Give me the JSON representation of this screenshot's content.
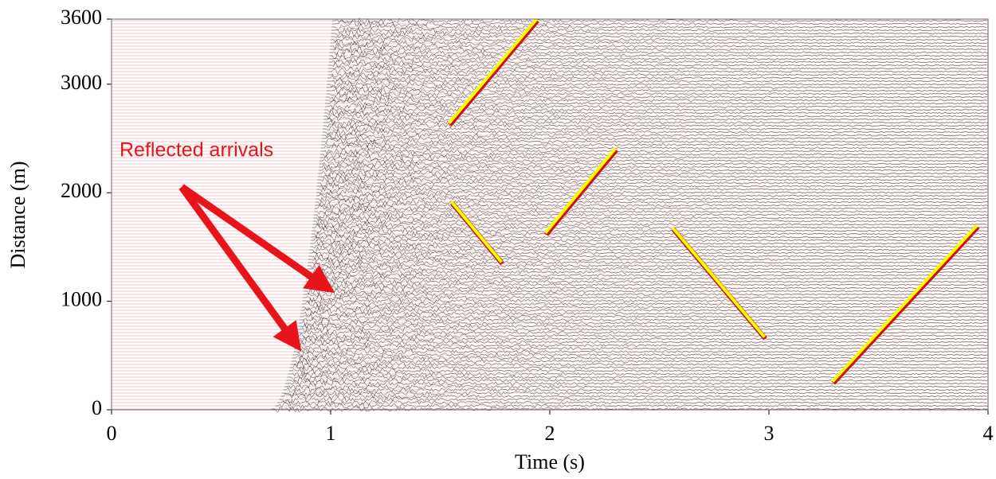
{
  "chart_data": {
    "type": "line",
    "x_label": "Time (s)",
    "y_label": "Distance (m)",
    "annotation": "Reflected arrivals",
    "xlim": [
      0,
      4
    ],
    "ylim": [
      0,
      3600
    ],
    "xticks": [
      0,
      1,
      2,
      3,
      4
    ],
    "yticks": [
      0,
      1000,
      2000,
      3000,
      3600
    ],
    "series": [
      {
        "color": "#ffff00",
        "x": [
          1.54,
          1.94
        ],
        "values": [
          2640,
          3600
        ]
      },
      {
        "color": "#ffff00",
        "x": [
          1.55,
          1.78
        ],
        "values": [
          1920,
          1360
        ]
      },
      {
        "color": "#ffff00",
        "x": [
          1.98,
          2.3
        ],
        "values": [
          1630,
          2410
        ]
      },
      {
        "color": "#ffff00",
        "x": [
          2.56,
          2.98
        ],
        "values": [
          1680,
          670
        ]
      },
      {
        "color": "#ffff00",
        "x": [
          3.29,
          3.95
        ],
        "values": [
          260,
          1700
        ]
      }
    ]
  }
}
